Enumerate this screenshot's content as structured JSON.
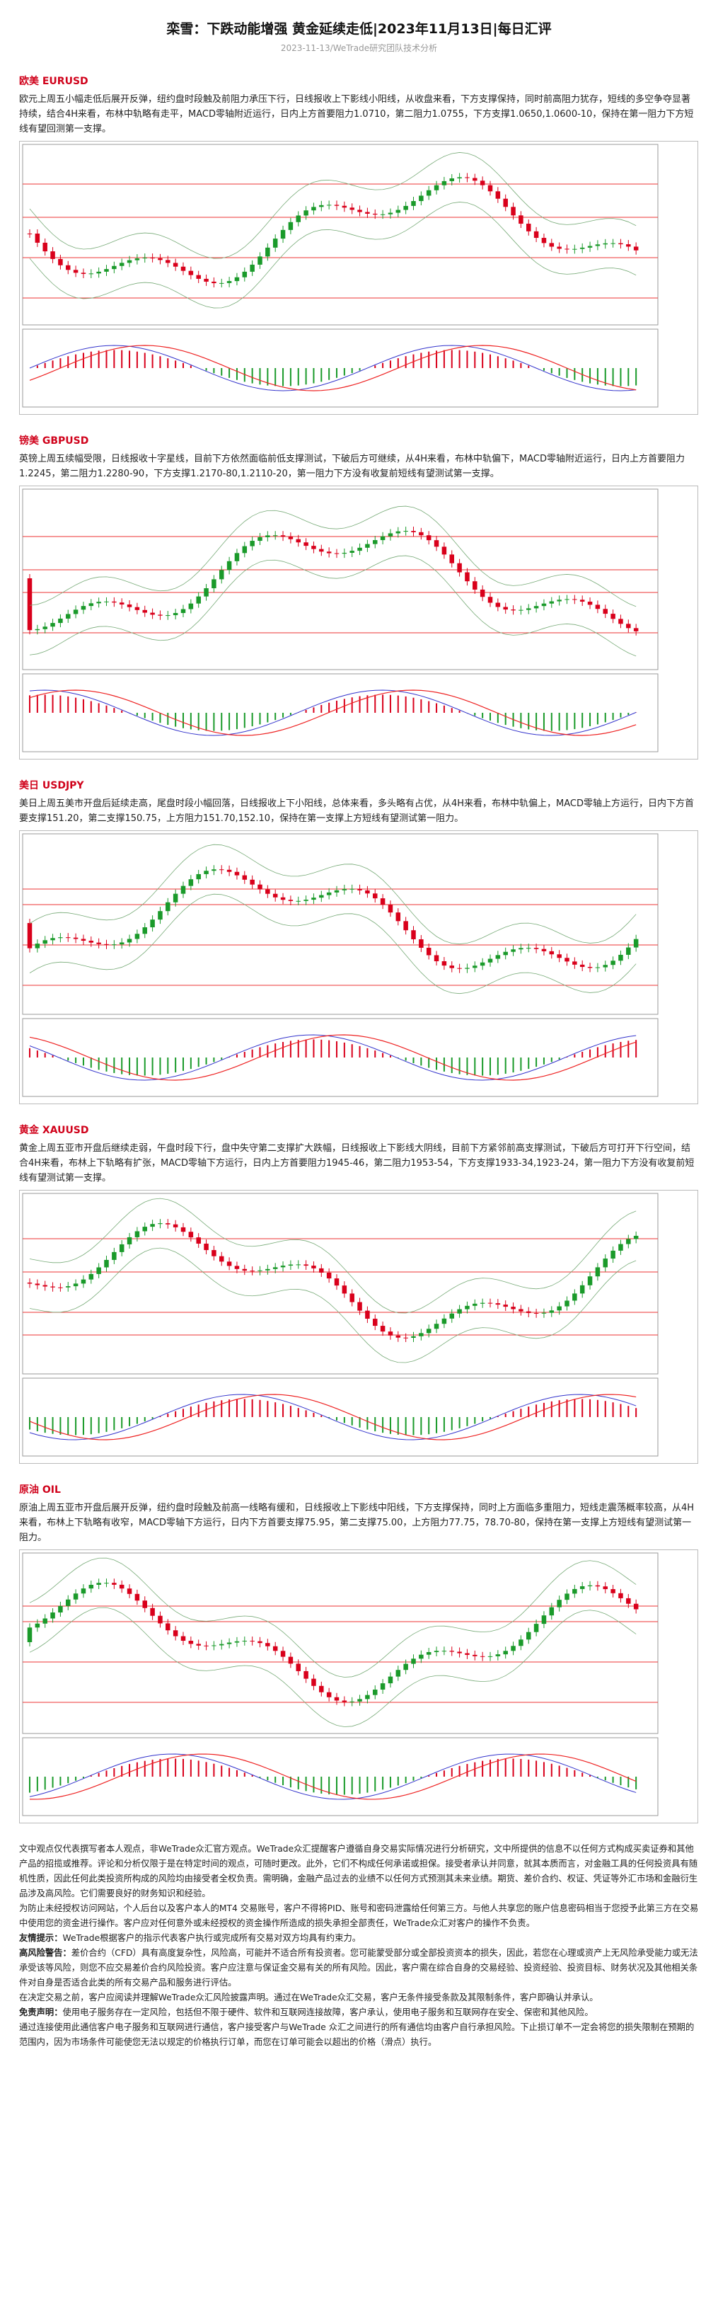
{
  "header": {
    "title": "栾雪：下跌动能增强 黄金延续走低|2023年11月13日|每日汇评",
    "subtitle": "2023-11-13/WeTrade研究团队技术分析"
  },
  "sections": [
    {
      "heading": "欧美 EURUSD",
      "text": "欧元上周五小幅走低后展开反弹，纽约盘时段触及前阻力承压下行，日线报收上下影线小阳线，从收盘来看，下方支撑保持，同时前高阻力犹存，短线的多空争夺显著持续，结合4H来看，布林中轨略有走平，MACD零轴附近运行，日内上方首要阻力1.0710，第二阻力1.0755，下方支撑1.0650,1.0600-10，保持在第一阻力下方短线有望回测第一支撑。"
    },
    {
      "heading": "镑美 GBPUSD",
      "text": "英镑上周五续幅受限，日线报收十字星线，目前下方依然面临前低支撑测试，下破后方可继续，从4H来看，布林中轨偏下，MACD零轴附近运行，日内上方首要阻力1.2245，第二阻力1.2280-90，下方支撑1.2170-80,1.2110-20，第一阻力下方没有收复前短线有望测试第一支撑。"
    },
    {
      "heading": "美日 USDJPY",
      "text": "美日上周五美市开盘后延续走高，尾盘时段小幅回落，日线报收上下小阳线，总体来看，多头略有占优，从4H来看，布林中轨偏上，MACD零轴上方运行，日内下方首要支撑151.20，第二支撑150.75，上方阻力151.70,152.10，保持在第一支撑上方短线有望测试第一阻力。"
    },
    {
      "heading": "黄金 XAUUSD",
      "text": "黄金上周五亚市开盘后继续走弱，午盘时段下行，盘中失守第二支撑扩大跌幅，日线报收上下影线大阴线，目前下方紧邻前高支撑测试，下破后方可打开下行空间，结合4H来看，布林上下轨略有扩张，MACD零轴下方运行，日内上方首要阻力1945-46，第二阻力1953-54，下方支撑1933-34,1923-24，第一阻力下方没有收复前短线有望测试第一支撑。"
    },
    {
      "heading": "原油 OIL",
      "text": "原油上周五亚市开盘后展开反弹，纽约盘时段触及前高一线略有缓和，日线报收上下影线中阳线，下方支撑保持，同时上方面临多重阻力，短线走震荡概率较高，从4H来看，布林上下轨略有收窄，MACD零轴下方运行，日内下方首要支撑75.95，第二支撑75.00，上方阻力77.75，78.70-80，保持在第一支撑上方短线有望测试第一阻力。"
    }
  ],
  "disclaimer": [
    {
      "text": "文中观点仅代表撰写者本人观点，非WeTrade众汇官方观点。WeTrade众汇提醒客户遵循自身交易实际情况进行分析研究，文中所提供的信息不以任何方式构成买卖证券和其他产品的招揽或推荐。评论和分析仅限于是在特定时间的观点，可随时更改。此外，它们不构成任何承诺或担保。接受者承认并同意，就其本质而言，对金融工具的任何投资具有随机性质，因此任何此类投资所构成的风险均由接受者全权负责。需明确，金融产品过去的业绩不以任何方式预测其未来业绩。期货、差价合约、权证、凭证等外汇市场和金融衍生品涉及高风险。它们需要良好的财务知识和经验。"
    },
    {
      "text": "为防止未经授权访问网站，个人后台以及客户本人的MT4 交易账号，客户不得将PID、账号和密码泄露给任何第三方。与他人共享您的账户信息密码相当于您授予此第三方在交易中使用您的资金进行操作。客户应对任何意外或未经授权的资金操作所造成的损失承担全部责任，WeTrade众汇对客户的操作不负责。"
    },
    {
      "lead": "友情提示：",
      "text": "WeTrade根据客户的指示代表客户执行或完成所有交易对双方均具有约束力。"
    },
    {
      "lead": "高风险警告：",
      "text": "差价合约（CFD）具有高度复杂性，风险高，可能并不适合所有投资者。您可能蒙受部分或全部投资资本的损失，因此，若您在心理或资产上无风险承受能力或无法承受该等风险，则您不应交易差价合约风险投资。客户应注意与保证金交易有关的所有风险。因此，客户需在综合自身的交易经验、投资经验、投资目标、财务状况及其他相关条件对自身是否适合此类的所有交易产品和服务进行评估。"
    },
    {
      "text": "在决定交易之前，客户应阅读并理解WeTrade众汇风险披露声明。通过在WeTrade众汇交易，客户无条件接受条款及其限制条件，客户即确认并承认。"
    },
    {
      "lead": "免责声明：",
      "text": "使用电子服务存在一定风险，包括但不限于硬件、软件和互联网连接故障，客户承认，使用电子服务和互联网存在安全、保密和其他风险。"
    },
    {
      "text": "通过连接使用此通信客户电子服务和互联网进行通信，客户接受客户与WeTrade 众汇之间进行的所有通信均由客户自行承担风险。下止损订单不一定会将您的损失限制在预期的范围内，因为市场条件可能使您无法以规定的价格执行订单，而您在订单可能会以超出的价格（滑点）执行。"
    }
  ]
}
